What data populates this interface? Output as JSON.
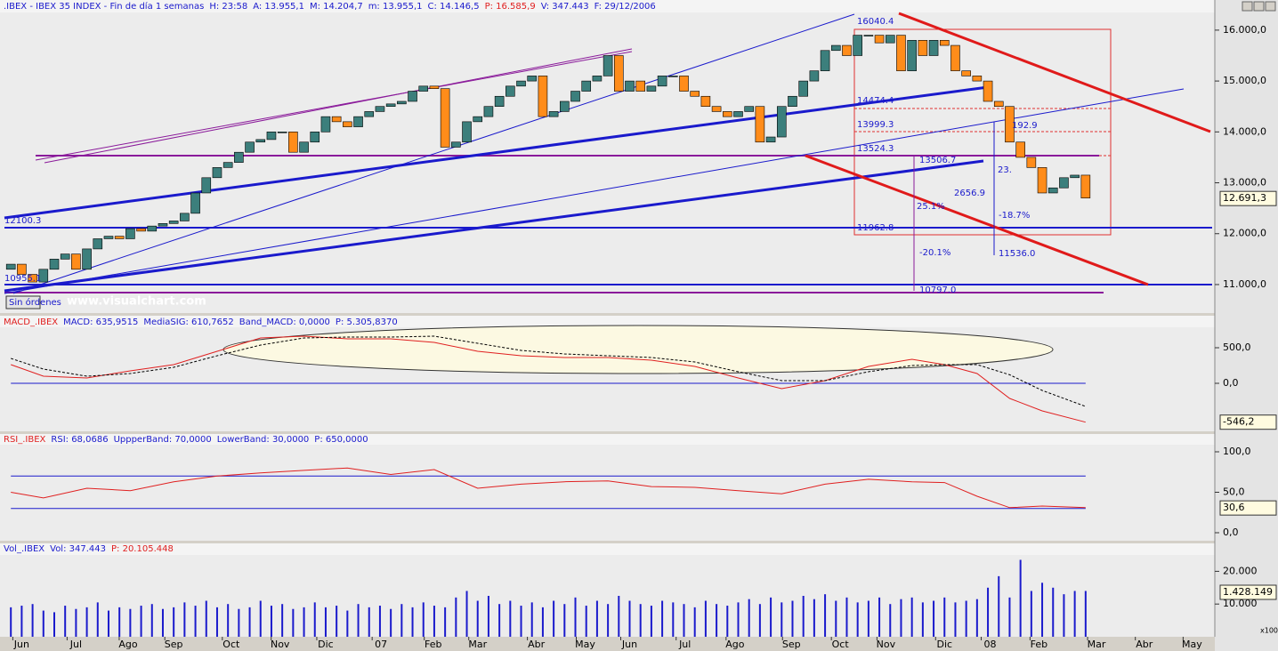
{
  "header": [
    ".IBEX - IBEX 35 INDEX - Fin de día 1 semanas",
    "H: 23:58",
    "A: 13.955,1",
    "M: 14.204,7",
    "m: 13.955,1",
    "C: 14.146,5",
    "P: 16.585,9",
    "V: 347.443",
    "F: 29/12/2006"
  ],
  "watermark": "www.visualchart.com",
  "order_button": "Sin órdenes",
  "chart_data": [
    {
      "type": "candlestick",
      "name": "IBEX",
      "open": [
        11300,
        11400,
        11200,
        11050,
        11300,
        11500,
        11600,
        11300,
        11700,
        11900,
        11950,
        11900,
        12100,
        12050,
        12150,
        12200,
        12250,
        12400,
        12800,
        13100,
        13300,
        13400,
        13600,
        13800,
        13850,
        14000,
        14000,
        13600,
        13800,
        14000,
        14300,
        14200,
        14100,
        14300,
        14400,
        14500,
        14550,
        14600,
        14800,
        14900,
        14850,
        13700,
        13800,
        14200,
        14300,
        14500,
        14700,
        14900,
        15000,
        15100,
        14300,
        14400,
        14600,
        14800,
        15000,
        15100,
        15500,
        14800,
        15000,
        14800,
        14900,
        15100,
        15100,
        14800,
        14700,
        14500,
        14400,
        14300,
        14400,
        14500,
        13800,
        13900,
        14500,
        14700,
        15000,
        15200,
        15600,
        15700,
        15500,
        15900,
        15900,
        15750,
        15900,
        15200,
        15800,
        15500,
        15800,
        15700,
        15200,
        15100,
        15000,
        14600,
        14500,
        13800,
        13500,
        13300,
        12800,
        12900,
        13100,
        13150
      ],
      "close": [
        11400,
        11200,
        11050,
        11300,
        11500,
        11600,
        11300,
        11700,
        11900,
        11950,
        11900,
        12100,
        12050,
        12150,
        12200,
        12250,
        12400,
        12800,
        13100,
        13300,
        13400,
        13600,
        13800,
        13850,
        14000,
        14000,
        13600,
        13800,
        14000,
        14300,
        14200,
        14100,
        14300,
        14400,
        14500,
        14550,
        14600,
        14800,
        14900,
        14850,
        13700,
        13800,
        14200,
        14300,
        14500,
        14700,
        14900,
        15000,
        15100,
        14300,
        14400,
        14600,
        14800,
        15000,
        15100,
        15500,
        14800,
        15000,
        14800,
        14900,
        15100,
        15100,
        14800,
        14700,
        14500,
        14400,
        14300,
        14400,
        14500,
        13800,
        13900,
        14500,
        14700,
        15000,
        15200,
        15600,
        15700,
        15500,
        15900,
        15900,
        15750,
        15900,
        15200,
        15800,
        15500,
        15800,
        15700,
        15200,
        15100,
        15000,
        14600,
        14500,
        13800,
        13500,
        13300,
        12800,
        12900,
        13100,
        13150,
        12700
      ],
      "up_color": "#3c7f7c",
      "down_color": "#ff8c1a",
      "xlim": [
        -1,
        110.9
      ],
      "ylim": [
        10440,
        16330
      ],
      "yticks": [
        {
          "value": 16000,
          "label": "16.000,0"
        },
        {
          "value": 15000,
          "label": "15.000,0"
        },
        {
          "value": 14000,
          "label": "14.000,0"
        },
        {
          "value": 13000,
          "label": "13.000,0"
        },
        {
          "value": 12000,
          "label": "12.000,0"
        },
        {
          "value": 11000,
          "label": "11.000,0"
        }
      ],
      "last_value": {
        "value": 12691.3,
        "label": "12.691,3"
      },
      "annotations": [
        "16040.4",
        "14474.4",
        "13999.3",
        "13524.3",
        "13506.7",
        "23.",
        "192.9",
        "2656.9",
        "25.1%",
        "-18.7%",
        "11962.8",
        "-20.1%",
        "11536.0",
        "10797.0",
        "12100.3",
        "10955.1"
      ]
    },
    {
      "type": "line",
      "header": [
        "MACD_.IBEX",
        "MACD: 635,9515",
        "MediaSIG: 610,7652",
        "Band_MACD: 0,0000",
        "P: 5.305,8370"
      ],
      "x": [
        0,
        3,
        7,
        11,
        15,
        19,
        23,
        27,
        31,
        35,
        39,
        43,
        47,
        51,
        55,
        59,
        63,
        67,
        71,
        75,
        79,
        83,
        86,
        89,
        92,
        95,
        99
      ],
      "series": [
        {
          "name": "MACD",
          "color": "#e02020",
          "dash": false,
          "values": [
            262,
            100,
            75,
            175,
            262,
            450,
            637,
            662,
            625,
            625,
            575,
            450,
            387,
            362,
            362,
            325,
            237,
            75,
            -75,
            37,
            237,
            337,
            262,
            137,
            -212,
            -387,
            -546
          ]
        },
        {
          "name": "MediaSIG",
          "color": "#000000",
          "dash": true,
          "values": [
            350,
            200,
            100,
            137,
            225,
            387,
            537,
            637,
            650,
            650,
            662,
            562,
            462,
            412,
            387,
            362,
            300,
            162,
            37,
            37,
            162,
            250,
            262,
            262,
            120,
            -100,
            -325
          ]
        }
      ],
      "bands": [
        0
      ],
      "xlim": [
        -1,
        110.9
      ],
      "ylim": [
        -675,
        787.5
      ],
      "yticks": [
        {
          "value": 500,
          "label": "500,0"
        },
        {
          "value": 0,
          "label": "0,0"
        }
      ],
      "last_value": {
        "value": -546.2,
        "label": "-546,2"
      }
    },
    {
      "type": "line",
      "header": [
        "RSI_.IBEX",
        "RSI: 68,0686",
        "UppperBand: 70,0000",
        "LowerBand: 30,0000",
        "P: 650,0000"
      ],
      "x": [
        0,
        3,
        7,
        11,
        15,
        19,
        23,
        27,
        31,
        35,
        39,
        43,
        47,
        51,
        55,
        59,
        63,
        67,
        71,
        75,
        79,
        83,
        86,
        89,
        92,
        95,
        99
      ],
      "series": [
        {
          "name": "RSI",
          "color": "#e02020",
          "dash": false,
          "values": [
            50,
            43,
            55,
            52,
            63,
            70,
            74,
            77,
            80,
            72,
            78,
            55,
            60,
            63,
            64,
            57,
            56,
            52,
            48,
            60,
            66,
            63,
            62,
            45,
            31,
            33,
            31
          ]
        }
      ],
      "bands": [
        70,
        30
      ],
      "xlim": [
        -1,
        110.9
      ],
      "ylim": [
        -9.9,
        108.8
      ],
      "yticks": [
        {
          "value": 100,
          "label": "100,0"
        },
        {
          "value": 50,
          "label": "50,0"
        },
        {
          "value": 0,
          "label": "0,0"
        }
      ],
      "last_value": {
        "value": 30.6,
        "label": "30,6"
      }
    },
    {
      "type": "bar",
      "header": [
        "Vol_.IBEX",
        "Vol: 347.443",
        "P: 20.105.448"
      ],
      "color": "#1a1acc",
      "values": [
        9000,
        9500,
        10000,
        8000,
        7500,
        9500,
        8500,
        9000,
        10500,
        8000,
        9000,
        8500,
        9500,
        10000,
        8500,
        9000,
        10500,
        9500,
        11000,
        9000,
        10000,
        8500,
        9000,
        11000,
        9500,
        10000,
        8500,
        9000,
        10500,
        9000,
        9500,
        8000,
        10000,
        9000,
        9500,
        8500,
        10000,
        9000,
        10500,
        9500,
        9000,
        12000,
        14000,
        11000,
        12500,
        10000,
        11000,
        9500,
        10500,
        9000,
        11000,
        10000,
        12000,
        9500,
        11000,
        10000,
        12500,
        11000,
        10000,
        9500,
        11000,
        10500,
        10000,
        9000,
        11000,
        10000,
        9500,
        10500,
        11500,
        10000,
        12000,
        10500,
        11000,
        12500,
        11500,
        13000,
        11000,
        12000,
        10500,
        11000,
        12000,
        10000,
        11500,
        12000,
        10500,
        11000,
        12000,
        10500,
        11000,
        11500,
        15000,
        18500,
        12000,
        23500,
        14000,
        16500,
        15000,
        13000,
        14000,
        14000
      ],
      "xlim": [
        -1,
        110.9
      ],
      "ylim": [
        0,
        25000
      ],
      "yticks": [
        {
          "value": 20000,
          "label": "20.000"
        },
        {
          "value": 10000,
          "label": "10.000"
        }
      ],
      "last_value": {
        "value": 1428149,
        "label": "1.428.149"
      },
      "scale_note": "x100",
      "xticks": [
        {
          "value": 1,
          "label": "Jun"
        },
        {
          "value": 6,
          "label": "Jul"
        },
        {
          "value": 10.8,
          "label": "Ago"
        },
        {
          "value": 15,
          "label": "Sep"
        },
        {
          "value": 20.3,
          "label": "Oct"
        },
        {
          "value": 24.8,
          "label": "Nov"
        },
        {
          "value": 29,
          "label": "Dic"
        },
        {
          "value": 34.1,
          "label": "07"
        },
        {
          "value": 38.9,
          "label": "Feb"
        },
        {
          "value": 43,
          "label": "Mar"
        },
        {
          "value": 48.4,
          "label": "Abr"
        },
        {
          "value": 52.9,
          "label": "May"
        },
        {
          "value": 57,
          "label": "Jun"
        },
        {
          "value": 62.1,
          "label": "Jul"
        },
        {
          "value": 66.7,
          "label": "Ago"
        },
        {
          "value": 71.9,
          "label": "Sep"
        },
        {
          "value": 76.4,
          "label": "Oct"
        },
        {
          "value": 80.6,
          "label": "Nov"
        },
        {
          "value": 86,
          "label": "Dic"
        },
        {
          "value": 90.2,
          "label": "08"
        },
        {
          "value": 94.7,
          "label": "Feb"
        },
        {
          "value": 100,
          "label": "Mar"
        },
        {
          "value": 104.4,
          "label": "Abr"
        },
        {
          "value": 108.8,
          "label": "May"
        }
      ]
    }
  ]
}
